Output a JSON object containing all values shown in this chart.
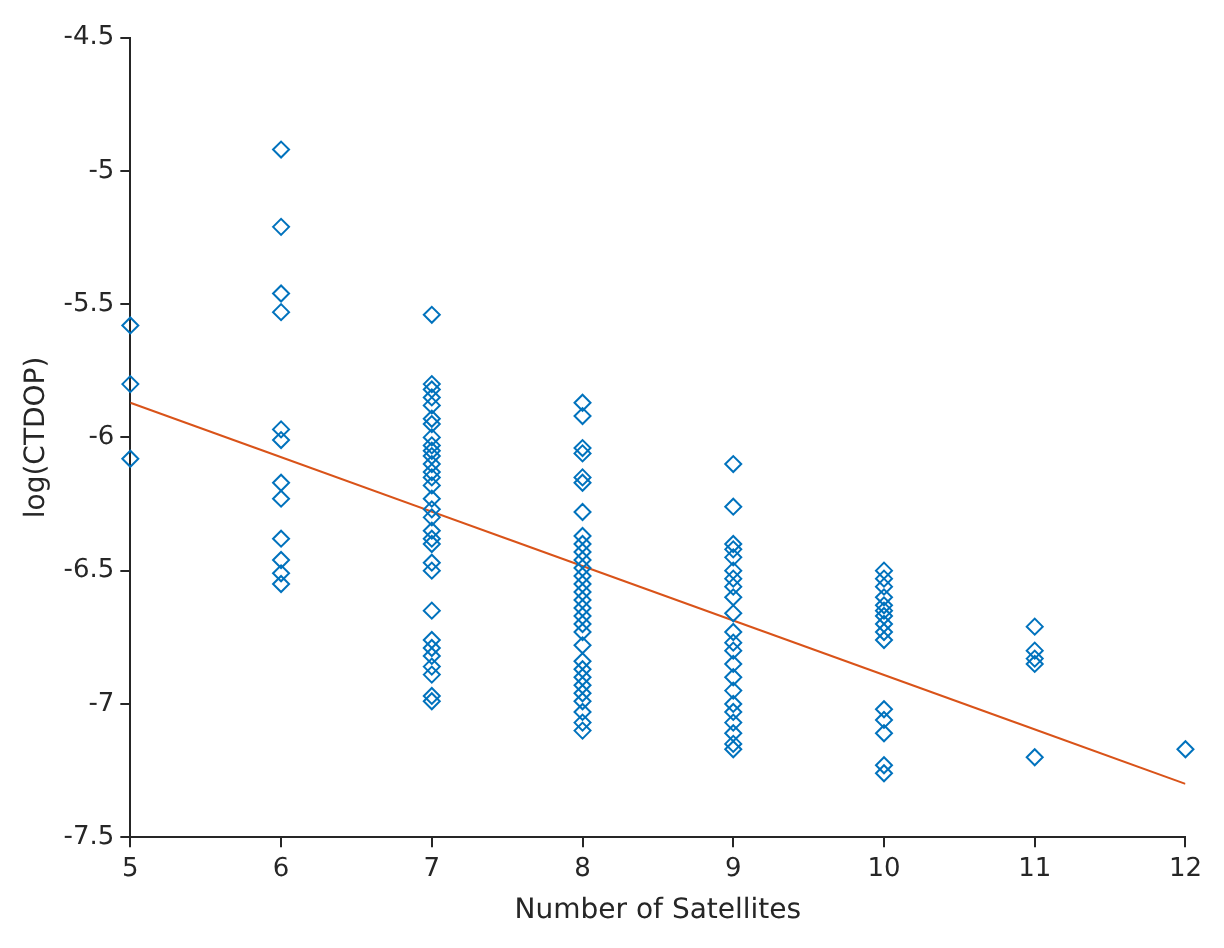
{
  "chart_data": {
    "type": "scatter",
    "xlabel": "Number of Satellites",
    "ylabel": "log(CTDOP)",
    "xlim": [
      5,
      12
    ],
    "xticks": [
      5,
      6,
      7,
      8,
      9,
      10,
      11,
      12
    ],
    "ylim": [
      -7.5,
      -4.5
    ],
    "yticks": [
      -7.5,
      -7,
      -6.5,
      -6,
      -5.5,
      -5,
      -4.5
    ],
    "grid": false,
    "legend": false,
    "marker": "diamond",
    "series": [
      {
        "color": "#0072bd",
        "x": [
          5,
          5,
          5,
          6,
          6,
          6,
          6,
          6,
          6,
          6,
          6,
          6,
          6,
          6,
          6,
          7,
          7,
          7,
          7,
          7,
          7,
          7,
          7,
          7,
          7,
          7,
          7,
          7,
          7,
          7,
          7,
          7,
          7,
          7,
          7,
          7,
          7,
          7,
          7,
          7,
          7,
          7,
          7,
          7,
          7,
          7,
          8,
          8,
          8,
          8,
          8,
          8,
          8,
          8,
          8,
          8,
          8,
          8,
          8,
          8,
          8,
          8,
          8,
          8,
          8,
          8,
          8,
          8,
          8,
          8,
          8,
          8,
          8,
          8,
          8,
          8,
          9,
          9,
          9,
          9,
          9,
          9,
          9,
          9,
          9,
          9,
          9,
          9,
          9,
          9,
          9,
          9,
          9,
          9,
          9,
          9,
          9,
          9,
          10,
          10,
          10,
          10,
          10,
          10,
          10,
          10,
          10,
          10,
          10,
          10,
          10,
          10,
          10,
          11,
          11,
          11,
          11,
          11,
          12
        ],
        "values": [
          -5.58,
          -5.8,
          -6.08,
          -4.92,
          -5.21,
          -5.46,
          -5.53,
          -5.97,
          -6.01,
          -6.17,
          -6.23,
          -6.38,
          -6.46,
          -6.51,
          -6.55,
          -5.54,
          -5.8,
          -5.82,
          -5.85,
          -5.88,
          -5.93,
          -5.95,
          -6,
          -6.03,
          -6.05,
          -6.07,
          -6.1,
          -6.13,
          -6.15,
          -6.18,
          -6.23,
          -6.27,
          -6.3,
          -6.35,
          -6.38,
          -6.4,
          -6.47,
          -6.5,
          -6.65,
          -6.76,
          -6.79,
          -6.82,
          -6.86,
          -6.89,
          -6.97,
          -6.99,
          -5.87,
          -5.92,
          -6.04,
          -6.06,
          -6.15,
          -6.17,
          -6.28,
          -6.37,
          -6.4,
          -6.43,
          -6.46,
          -6.49,
          -6.52,
          -6.55,
          -6.58,
          -6.61,
          -6.64,
          -6.67,
          -6.7,
          -6.73,
          -6.78,
          -6.84,
          -6.87,
          -6.9,
          -6.93,
          -6.96,
          -6.99,
          -7.03,
          -7.07,
          -7.1,
          -6.1,
          -6.26,
          -6.4,
          -6.42,
          -6.45,
          -6.5,
          -6.53,
          -6.56,
          -6.6,
          -6.66,
          -6.73,
          -6.77,
          -6.8,
          -6.85,
          -6.9,
          -6.95,
          -7,
          -7.03,
          -7.07,
          -7.11,
          -7.15,
          -7.17,
          -6.5,
          -6.53,
          -6.56,
          -6.6,
          -6.63,
          -6.65,
          -6.67,
          -6.7,
          -6.73,
          -6.76,
          -7.02,
          -7.06,
          -7.11,
          -7.23,
          -7.26,
          -6.71,
          -6.8,
          -6.83,
          -6.85,
          -7.2,
          -7.17
        ]
      },
      {
        "type": "line",
        "marker": "none",
        "color": "#d95319",
        "x": [
          5,
          12
        ],
        "values": [
          -5.87,
          -7.3
        ]
      }
    ]
  }
}
